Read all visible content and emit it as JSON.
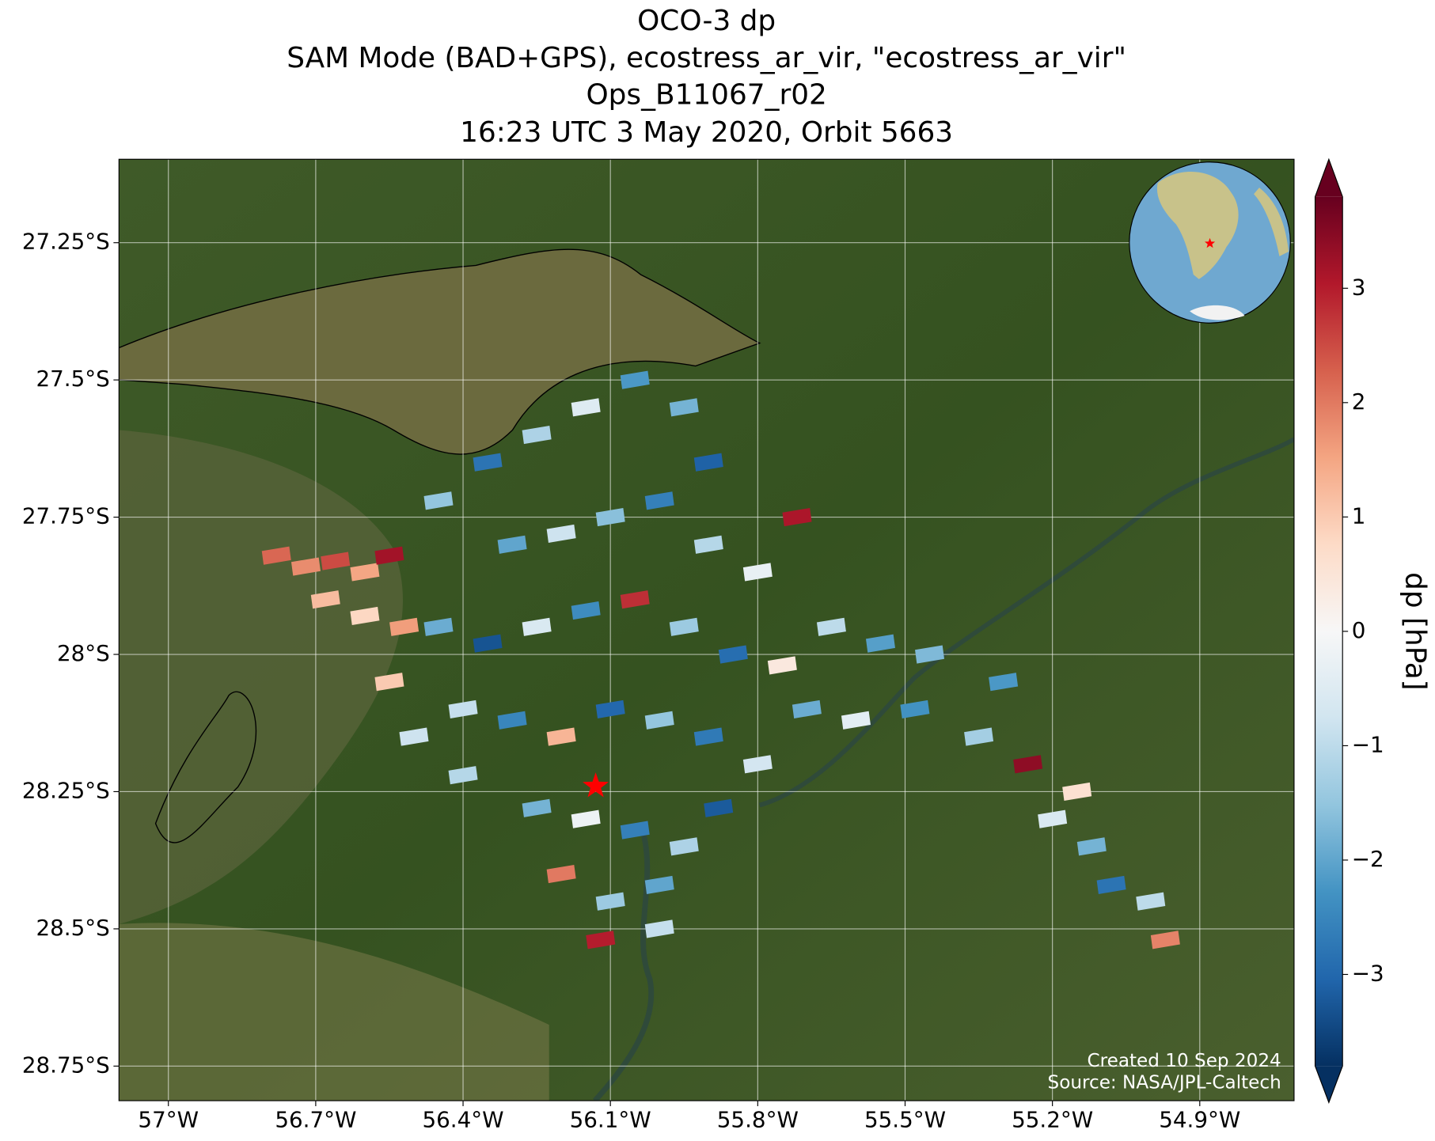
{
  "chart_data": {
    "type": "scatter",
    "title": [
      "OCO-3 dp",
      "SAM Mode (BAD+GPS), ecostress_ar_vir, \"ecostress_ar_vir\"",
      "Ops_B11067_r02",
      "16:23 UTC 3 May 2020, Orbit 5663"
    ],
    "xlim": [
      -57.1006,
      -54.708
    ],
    "ylim": [
      -28.813,
      -27.098
    ],
    "xticks": [
      {
        "value": -57,
        "label": "57°W"
      },
      {
        "value": -56.7,
        "label": "56.7°W"
      },
      {
        "value": -56.4,
        "label": "56.4°W"
      },
      {
        "value": -56.1,
        "label": "56.1°W"
      },
      {
        "value": -55.8,
        "label": "55.8°W"
      },
      {
        "value": -55.5,
        "label": "55.5°W"
      },
      {
        "value": -55.2,
        "label": "55.2°W"
      },
      {
        "value": -54.9,
        "label": "54.9°W"
      }
    ],
    "yticks": [
      {
        "value": -27.25,
        "label": "27.25°S"
      },
      {
        "value": -27.5,
        "label": "27.5°S"
      },
      {
        "value": -27.75,
        "label": "27.75°S"
      },
      {
        "value": -28,
        "label": "28°S"
      },
      {
        "value": -28.25,
        "label": "28.25°S"
      },
      {
        "value": -28.5,
        "label": "28.5°S"
      },
      {
        "value": -28.75,
        "label": "28.75°S"
      }
    ],
    "grid": true,
    "x": [
      -56.78,
      -56.72,
      -56.66,
      -56.6,
      -56.55,
      -56.68,
      -56.6,
      -56.52,
      -56.45,
      -56.35,
      -56.25,
      -56.15,
      -56.05,
      -55.95,
      -55.9,
      -56.3,
      -56.2,
      -56.1,
      -56.0,
      -55.9,
      -55.8,
      -55.72,
      -56.45,
      -56.35,
      -56.25,
      -56.15,
      -56.05,
      -55.95,
      -55.85,
      -55.75,
      -55.65,
      -55.55,
      -55.45,
      -56.4,
      -56.3,
      -56.2,
      -56.1,
      -56.0,
      -55.9,
      -55.8,
      -55.7,
      -55.6,
      -55.48,
      -56.25,
      -56.15,
      -56.05,
      -55.95,
      -55.88,
      -56.2,
      -56.1,
      -56.0,
      -56.12,
      -56.0,
      -55.35,
      -55.25,
      -55.2,
      -55.12,
      -55.08,
      -55.0,
      -54.97,
      -55.3,
      -55.15,
      -56.55,
      -56.5,
      -56.4
    ],
    "y": [
      -27.82,
      -27.84,
      -27.83,
      -27.85,
      -27.82,
      -27.9,
      -27.93,
      -27.95,
      -27.72,
      -27.65,
      -27.6,
      -27.55,
      -27.5,
      -27.55,
      -27.65,
      -27.8,
      -27.78,
      -27.75,
      -27.72,
      -27.8,
      -27.85,
      -27.75,
      -27.95,
      -27.98,
      -27.95,
      -27.92,
      -27.9,
      -27.95,
      -28.0,
      -28.02,
      -27.95,
      -27.98,
      -28.0,
      -28.1,
      -28.12,
      -28.15,
      -28.1,
      -28.12,
      -28.15,
      -28.2,
      -28.1,
      -28.12,
      -28.1,
      -28.28,
      -28.3,
      -28.32,
      -28.35,
      -28.28,
      -28.4,
      -28.45,
      -28.42,
      -28.52,
      -28.5,
      -28.15,
      -28.2,
      -28.3,
      -28.35,
      -28.42,
      -28.45,
      -28.52,
      -28.05,
      -28.25,
      -28.05,
      -28.15,
      -28.22
    ],
    "values": [
      2.2,
      1.8,
      2.5,
      1.5,
      3.2,
      1.2,
      0.8,
      1.6,
      -1.5,
      -2.8,
      -1.2,
      -0.5,
      -2.2,
      -1.8,
      -3.1,
      -2.0,
      -0.8,
      -1.6,
      -2.6,
      -1.1,
      -0.3,
      3.1,
      -1.9,
      -3.3,
      -0.6,
      -2.4,
      2.8,
      -1.4,
      -2.9,
      0.4,
      -1.0,
      -2.1,
      -1.7,
      -0.9,
      -2.5,
      1.3,
      -3.0,
      -1.5,
      -2.7,
      -0.7,
      -1.9,
      -0.4,
      -2.3,
      -1.8,
      -0.2,
      -2.6,
      -1.2,
      -3.2,
      2.0,
      -1.4,
      -2.0,
      3.0,
      -0.9,
      -1.3,
      3.4,
      -0.6,
      -1.8,
      -2.8,
      -1.0,
      1.9,
      -2.2,
      0.6,
      1.0,
      -0.8,
      -1.1
    ],
    "marker": {
      "x": -56.13,
      "y": -28.24,
      "color": "#ff0000"
    },
    "colormap": [
      "#053061",
      "#2166ac",
      "#4393c3",
      "#92c5de",
      "#d1e5f0",
      "#f7f7f7",
      "#fddbc7",
      "#f4a582",
      "#d6604d",
      "#b2182b",
      "#67001f"
    ],
    "clim": [
      -3.8,
      3.8
    ],
    "cticks": [
      {
        "value": -3,
        "label": "−3"
      },
      {
        "value": -2,
        "label": "−2"
      },
      {
        "value": -1,
        "label": "−1"
      },
      0,
      1,
      2,
      3
    ],
    "colorbar_label": "dp [hPa]",
    "footer": [
      "Created 10 Sep 2024",
      "Source: NASA/JPL-Caltech"
    ]
  }
}
